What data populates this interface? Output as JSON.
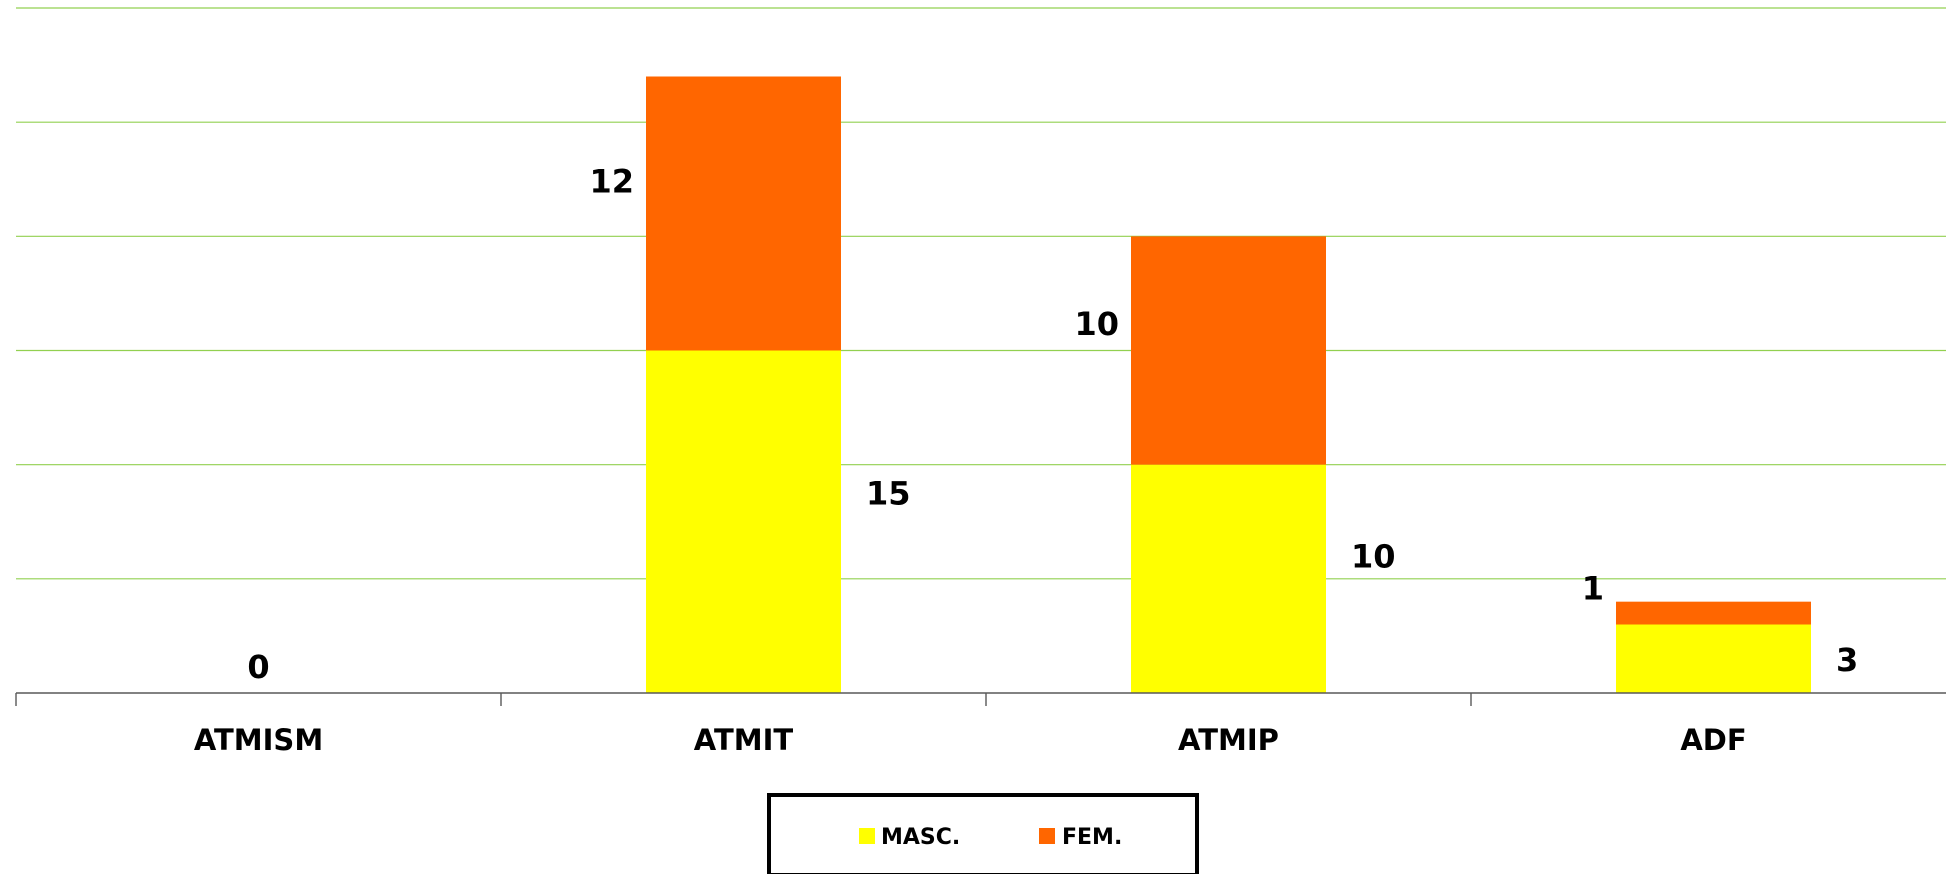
{
  "chart_data": {
    "type": "bar",
    "stacked": true,
    "categories": [
      "ATMISM",
      "ATMIT",
      "ATMIP",
      "ADF"
    ],
    "series": [
      {
        "name": "MASC.",
        "values": [
          0,
          15,
          10,
          3
        ],
        "color": "#ffff00"
      },
      {
        "name": "FEM.",
        "values": [
          0,
          12,
          10,
          1
        ],
        "color": "#ff6600"
      }
    ],
    "data_labels": {
      "MASC.": [
        "0",
        "15",
        "10",
        "3"
      ],
      "FEM.": [
        "",
        "12",
        "10",
        "1"
      ]
    },
    "title": "",
    "xlabel": "",
    "ylabel": "",
    "ylim": [
      0,
      30
    ],
    "y_tick_labels_shown": false,
    "grid": true,
    "grid_color": "#92d050",
    "legend_position": "bottom"
  }
}
